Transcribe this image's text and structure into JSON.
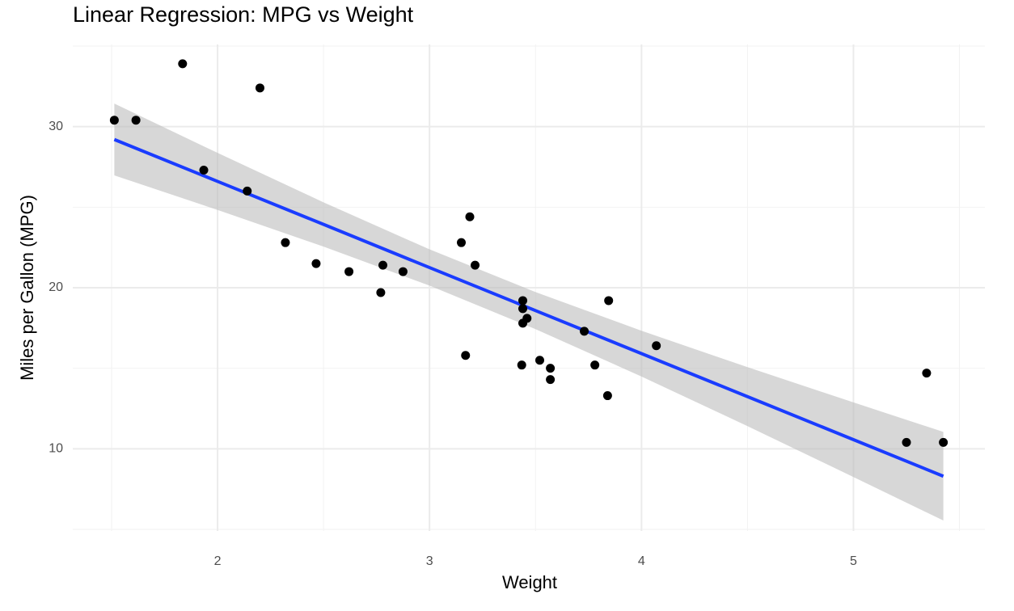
{
  "chart_data": {
    "type": "scatter",
    "title": "Linear Regression: MPG vs Weight",
    "x_label": "Weight",
    "y_label": "Miles per Gallon (MPG)",
    "points": {
      "color": "#000000",
      "x": [
        2.62,
        2.875,
        2.32,
        3.215,
        3.44,
        3.46,
        3.57,
        3.19,
        3.15,
        3.44,
        3.44,
        4.07,
        3.73,
        3.78,
        5.25,
        5.424,
        5.345,
        2.2,
        1.615,
        1.835,
        2.465,
        3.52,
        3.435,
        3.84,
        3.845,
        1.935,
        2.14,
        1.513,
        3.17,
        2.77,
        3.57,
        2.78
      ],
      "values": [
        21.0,
        21.0,
        22.8,
        21.4,
        18.7,
        18.1,
        14.3,
        24.4,
        22.8,
        19.2,
        17.8,
        16.4,
        17.3,
        15.2,
        10.4,
        10.4,
        14.7,
        32.4,
        30.4,
        33.9,
        21.5,
        15.5,
        15.2,
        13.3,
        19.2,
        27.3,
        26.0,
        30.4,
        15.8,
        19.7,
        15.0,
        21.4
      ]
    },
    "fit": {
      "color": "#1a3cff",
      "band_color": "#bdbdbd",
      "x": [
        1.513,
        2,
        2.5,
        3,
        3.5,
        4,
        4.5,
        5,
        5.424
      ],
      "values": [
        29.2,
        26.6,
        23.93,
        21.25,
        18.58,
        15.91,
        13.24,
        10.57,
        8.3
      ],
      "lower": [
        26.97,
        24.83,
        22.55,
        20.13,
        17.43,
        14.49,
        11.41,
        8.25,
        5.55
      ],
      "upper": [
        31.43,
        28.37,
        25.3,
        22.38,
        19.73,
        17.33,
        15.07,
        12.88,
        11.05
      ]
    },
    "xlim": [
      1.317,
      5.62
    ],
    "ylim": [
      4.9,
      35.1
    ],
    "xticks": [
      2,
      3,
      4,
      5
    ],
    "yticks": [
      10,
      20,
      30
    ],
    "xminor": [
      1.5,
      2.5,
      3.5,
      4.5,
      5.5
    ],
    "yminor": [
      5,
      15,
      25,
      35
    ],
    "grid": true
  }
}
